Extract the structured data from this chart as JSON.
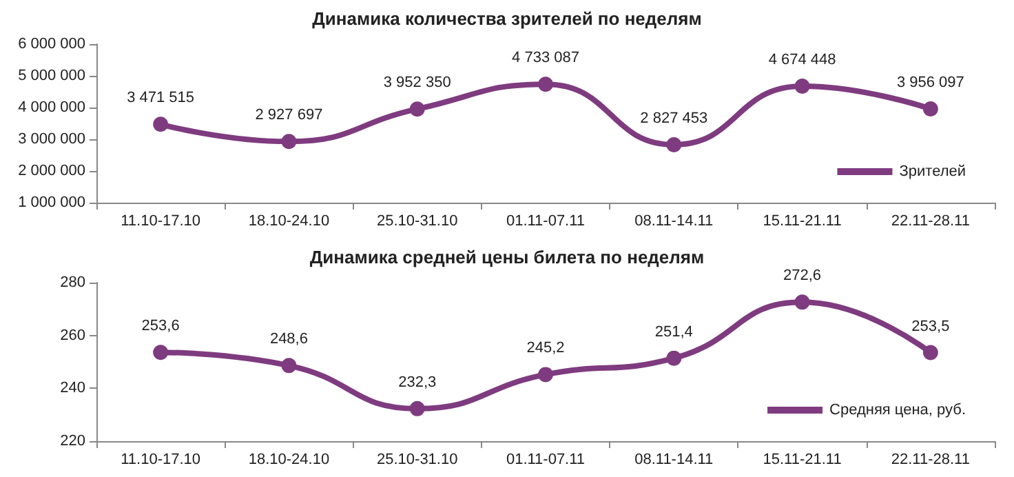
{
  "chart_data": [
    {
      "type": "line",
      "title": "Динамика количества зрителей по неделям",
      "categories": [
        "11.10-17.10",
        "18.10-24.10",
        "25.10-31.10",
        "01.11-07.11",
        "08.11-14.11",
        "15.11-21.11",
        "22.11-28.11"
      ],
      "series": [
        {
          "name": "Зрителей",
          "color": "#7f3b7f",
          "values": [
            3471515,
            2927697,
            3952350,
            4733087,
            2827453,
            4674448,
            3956097
          ],
          "value_labels": [
            "3 471 515",
            "2 927 697",
            "3 952 350",
            "4 733 087",
            "2 827 453",
            "4 674 448",
            "3 956 097"
          ]
        }
      ],
      "ylim": [
        1000000,
        6000000
      ],
      "yticks": [
        {
          "value": 1000000,
          "label": "1 000 000"
        },
        {
          "value": 2000000,
          "label": "2 000 000"
        },
        {
          "value": 3000000,
          "label": "3 000 000"
        },
        {
          "value": 4000000,
          "label": "4 000 000"
        },
        {
          "value": 5000000,
          "label": "5 000 000"
        },
        {
          "value": 6000000,
          "label": "6 000 000"
        }
      ],
      "grid": false,
      "legend": "bottom right",
      "marker": "circle",
      "line_style": "solid"
    },
    {
      "type": "line",
      "title": "Динамика средней цены билета по неделям",
      "categories": [
        "11.10-17.10",
        "18.10-24.10",
        "25.10-31.10",
        "01.11-07.11",
        "08.11-14.11",
        "15.11-21.11",
        "22.11-28.11"
      ],
      "series": [
        {
          "name": "Средняя цена, руб.",
          "color": "#7f3b7f",
          "values": [
            253.6,
            248.6,
            232.3,
            245.2,
            251.4,
            272.6,
            253.5
          ],
          "value_labels": [
            "253,6",
            "248,6",
            "232,3",
            "245,2",
            "251,4",
            "272,6",
            "253,5"
          ]
        }
      ],
      "ylim": [
        220,
        280
      ],
      "yticks": [
        220,
        240,
        260,
        280
      ],
      "grid": false,
      "legend": "bottom right",
      "marker": "circle",
      "line_style": "solid"
    }
  ]
}
